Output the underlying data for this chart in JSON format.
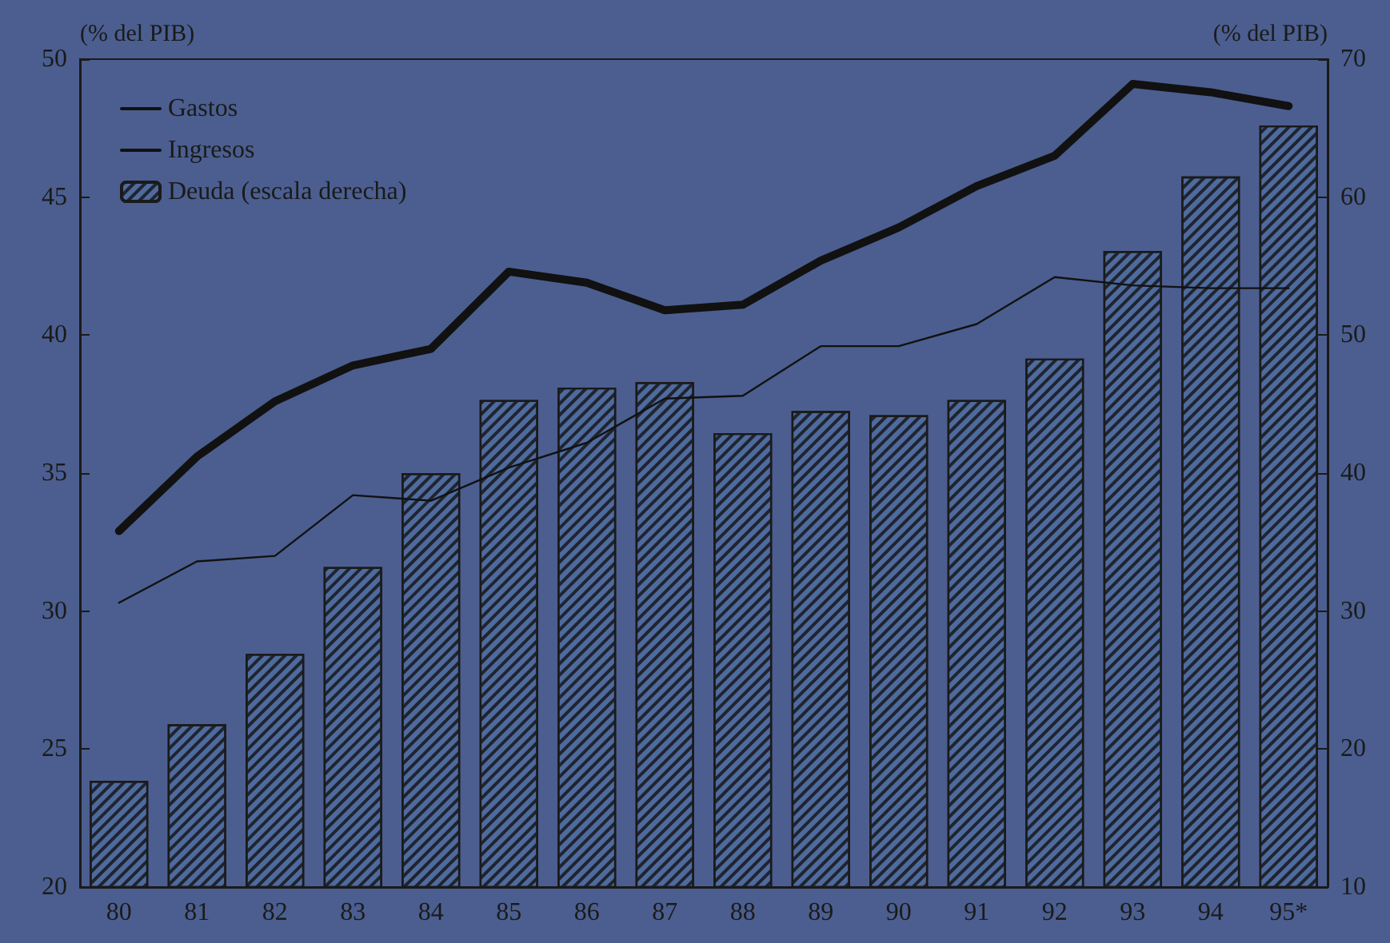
{
  "chart_data": {
    "type": "bar",
    "categories": [
      "80",
      "81",
      "82",
      "83",
      "84",
      "85",
      "86",
      "87",
      "88",
      "89",
      "90",
      "91",
      "92",
      "93",
      "94",
      "95*"
    ],
    "ylabel": "(% del PIB)",
    "y2label": "(% del PIB)",
    "series": [
      {
        "name": "Gastos",
        "type": "line",
        "color": "#111111",
        "values": [
          32.9,
          35.6,
          37.6,
          38.9,
          39.5,
          42.3,
          41.9,
          40.9,
          41.1,
          42.7,
          43.9,
          45.4,
          46.5,
          49.1,
          48.8,
          48.3
        ]
      },
      {
        "name": "Ingresos",
        "type": "line",
        "color": "#111111",
        "values": [
          30.3,
          31.8,
          32.0,
          34.2,
          34.0,
          35.2,
          36.1,
          37.7,
          37.8,
          39.6,
          39.6,
          40.4,
          42.1,
          41.8,
          41.7,
          41.7
        ]
      },
      {
        "name": "Deuda (escala derecha)",
        "axis": "y2",
        "color": "#4f6a9c",
        "values": [
          17.7,
          21.8,
          26.9,
          33.2,
          40.0,
          45.3,
          46.2,
          46.6,
          42.9,
          44.5,
          44.2,
          45.3,
          48.3,
          56.1,
          61.5,
          65.2
        ]
      }
    ],
    "ylim": [
      20,
      50
    ],
    "yticks": [
      20,
      25,
      30,
      35,
      40,
      45,
      50
    ],
    "y2lim": [
      10,
      70
    ],
    "y2ticks": [
      10,
      20,
      30,
      40,
      50,
      60,
      70
    ],
    "grid": false,
    "legend": "top left",
    "marker": "none"
  }
}
